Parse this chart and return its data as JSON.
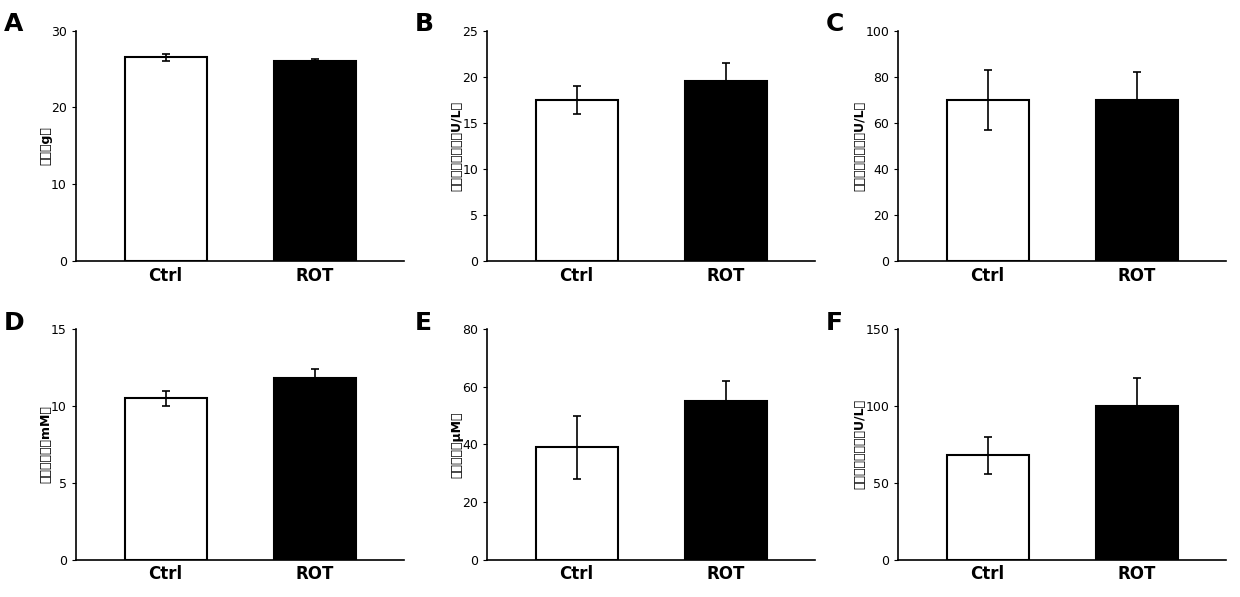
{
  "panels": [
    {
      "label": "A",
      "ylabel": "体重（g）",
      "ylim": [
        0,
        30
      ],
      "yticks": [
        0,
        10,
        20,
        30
      ],
      "categories": [
        "Ctrl",
        "ROT"
      ],
      "values": [
        26.5,
        26.0
      ],
      "errors": [
        0.4,
        0.3
      ],
      "colors": [
        "white",
        "black"
      ]
    },
    {
      "label": "B",
      "ylabel": "血清谷丙转氨酶（U/L）",
      "ylim": [
        0,
        25
      ],
      "yticks": [
        0,
        5,
        10,
        15,
        20,
        25
      ],
      "categories": [
        "Ctrl",
        "ROT"
      ],
      "values": [
        17.5,
        19.5
      ],
      "errors": [
        1.5,
        2.0
      ],
      "colors": [
        "white",
        "black"
      ]
    },
    {
      "label": "C",
      "ylabel": "血清谷草转氨酶（U/L）",
      "ylim": [
        0,
        100
      ],
      "yticks": [
        0,
        20,
        40,
        60,
        80,
        100
      ],
      "categories": [
        "Ctrl",
        "ROT"
      ],
      "values": [
        70.0,
        70.0
      ],
      "errors": [
        13.0,
        12.0
      ],
      "colors": [
        "white",
        "black"
      ]
    },
    {
      "label": "D",
      "ylabel": "血清尿素氮（mM）",
      "ylim": [
        0,
        15
      ],
      "yticks": [
        0,
        5,
        10,
        15
      ],
      "categories": [
        "Ctrl",
        "ROT"
      ],
      "values": [
        10.5,
        11.8
      ],
      "errors": [
        0.5,
        0.6
      ],
      "colors": [
        "white",
        "black"
      ]
    },
    {
      "label": "E",
      "ylabel": "血清肌霸（μM）",
      "ylim": [
        0,
        80
      ],
      "yticks": [
        0,
        20,
        40,
        60,
        80
      ],
      "categories": [
        "Ctrl",
        "ROT"
      ],
      "values": [
        39.0,
        55.0
      ],
      "errors": [
        11.0,
        7.0
      ],
      "colors": [
        "white",
        "black"
      ]
    },
    {
      "label": "F",
      "ylabel": "血清乳酸脱氨酶（U/L）",
      "ylim": [
        0,
        150
      ],
      "yticks": [
        0,
        50,
        100,
        150
      ],
      "categories": [
        "Ctrl",
        "ROT"
      ],
      "values": [
        68.0,
        100.0
      ],
      "errors": [
        12.0,
        18.0
      ],
      "colors": [
        "white",
        "black"
      ]
    }
  ],
  "label_fontsize": 18,
  "tick_fontsize": 9,
  "ylabel_fontsize": 9,
  "xtick_fontsize": 12,
  "background_color": "white",
  "bar_width": 0.55,
  "capsize": 3
}
